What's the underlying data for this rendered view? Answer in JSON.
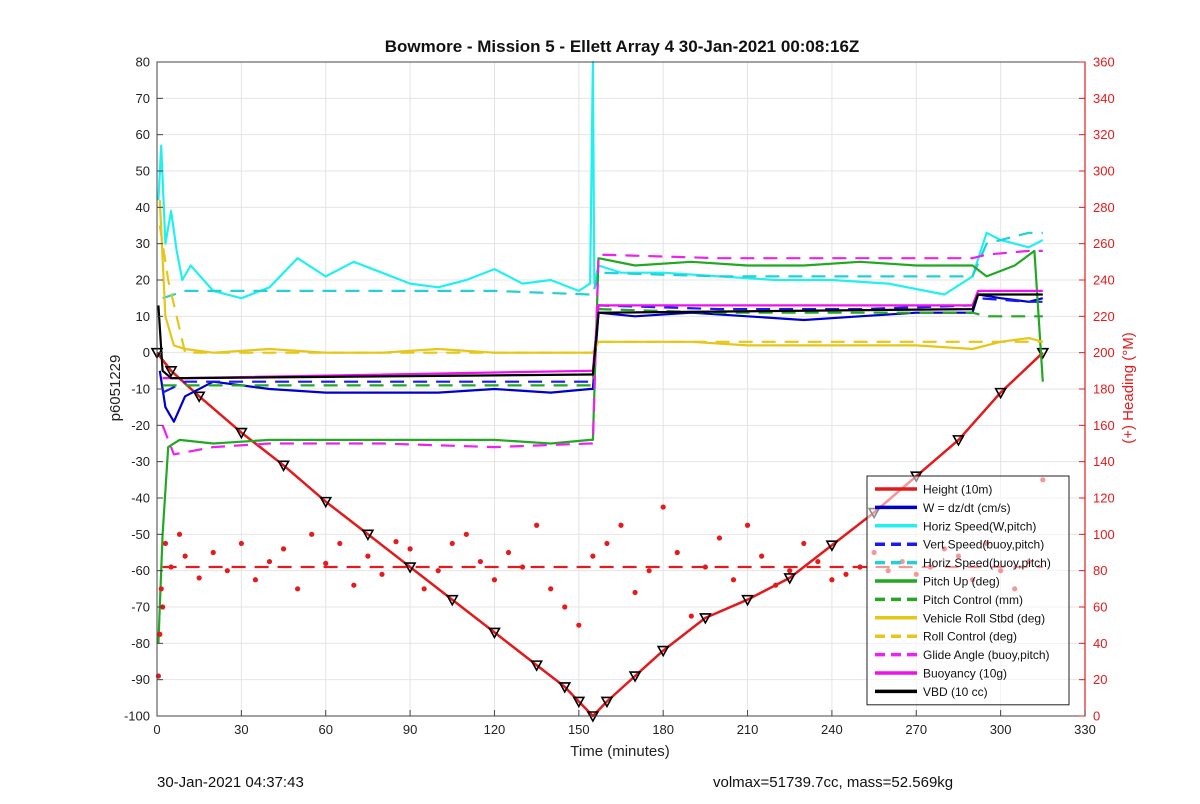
{
  "chart_data": {
    "type": "line",
    "title": "Bowmore - Mission 5 - Ellett Array 4 30-Jan-2021 00:08:16Z",
    "xlabel": "Time (minutes)",
    "ylabel": "p6051229",
    "y2label": "(+) Heading (°M)",
    "xlim": [
      0,
      330
    ],
    "ylim": [
      -100,
      80
    ],
    "y2lim": [
      0,
      360
    ],
    "xticks": [
      0,
      30,
      60,
      90,
      120,
      150,
      180,
      210,
      240,
      270,
      300,
      330
    ],
    "yticks": [
      80,
      70,
      60,
      50,
      40,
      30,
      20,
      10,
      0,
      -10,
      -20,
      -30,
      -40,
      -50,
      -60,
      -70,
      -80,
      -90,
      -100
    ],
    "y2ticks": [
      360,
      340,
      320,
      300,
      280,
      260,
      240,
      220,
      200,
      180,
      160,
      140,
      120,
      100,
      80,
      60,
      40,
      20,
      0
    ],
    "grid": true,
    "legend_position": "bottom-right",
    "colors": {
      "y2_axis": "#e41a1c",
      "heading_points": "#e41a1c"
    },
    "series": [
      {
        "name": "Height (10m)",
        "color": "#e31a1c",
        "style": "solid",
        "marker": "black-triangle",
        "x": [
          0,
          5,
          15,
          30,
          45,
          60,
          75,
          90,
          105,
          120,
          135,
          145,
          150,
          155,
          160,
          170,
          180,
          195,
          210,
          225,
          240,
          255,
          270,
          285,
          300,
          315
        ],
        "y": [
          0,
          -5,
          -12,
          -22,
          -31,
          -41,
          -50,
          -59,
          -68,
          -77,
          -86,
          -92,
          -96,
          -100,
          -96,
          -89,
          -82,
          -73,
          -68,
          -62,
          -53,
          -44,
          -34,
          -24,
          -11,
          0
        ]
      },
      {
        "name": "W = dz/dt (cm/s)",
        "color": "#0000cc",
        "style": "solid",
        "x": [
          1,
          3,
          6,
          10,
          20,
          40,
          60,
          80,
          100,
          120,
          140,
          154,
          155,
          157,
          170,
          190,
          210,
          230,
          250,
          270,
          285,
          290,
          292,
          300,
          310,
          315
        ],
        "y": [
          -5,
          -15,
          -19,
          -12,
          -8,
          -10,
          -11,
          -11,
          -11,
          -10,
          -11,
          -10,
          -10,
          11,
          10,
          11,
          10,
          9,
          10,
          11,
          11,
          11,
          16,
          15,
          14,
          15
        ]
      },
      {
        "name": "Horiz Speed(W,pitch)",
        "color": "#22f0f0",
        "style": "solid",
        "x": [
          0.5,
          1.5,
          3,
          5,
          7,
          9,
          12,
          20,
          30,
          40,
          50,
          60,
          70,
          80,
          90,
          100,
          110,
          120,
          130,
          140,
          150,
          154,
          155,
          155.5,
          157,
          165,
          180,
          200,
          220,
          240,
          260,
          280,
          290,
          295,
          300,
          310,
          315
        ],
        "y": [
          42,
          57,
          30,
          39,
          28,
          20,
          24,
          17,
          15,
          18,
          26,
          21,
          25,
          22,
          19,
          18,
          20,
          23,
          19,
          20,
          17,
          19,
          80,
          19,
          24,
          22,
          22,
          21,
          20,
          20,
          19,
          16,
          21,
          33,
          31,
          29,
          31
        ]
      },
      {
        "name": "Vert Speed(buoy,pitch)",
        "color": "#1a1aee",
        "style": "dashed",
        "x": [
          2,
          10,
          40,
          80,
          120,
          154,
          155,
          157,
          200,
          250,
          290,
          292,
          310,
          315
        ],
        "y": [
          -11,
          -8,
          -8,
          -8,
          -8,
          -8,
          -8,
          13,
          12,
          12,
          13,
          15,
          14,
          14
        ]
      },
      {
        "name": "Horiz Speed(buoy,pitch)",
        "color": "#22d0d8",
        "style": "dashed",
        "x": [
          2,
          10,
          40,
          80,
          120,
          154,
          155,
          157,
          200,
          250,
          290,
          295,
          310,
          315
        ],
        "y": [
          15,
          17,
          17,
          17,
          17,
          16,
          16,
          22,
          21,
          21,
          21,
          30,
          33,
          33
        ]
      },
      {
        "name": "Pitch Up (deg)",
        "color": "#22a822",
        "style": "solid",
        "x": [
          0.5,
          2,
          4,
          8,
          20,
          40,
          60,
          80,
          100,
          120,
          140,
          154,
          155,
          157,
          170,
          190,
          210,
          230,
          250,
          270,
          290,
          295,
          305,
          312,
          315
        ],
        "y": [
          -80,
          -50,
          -26,
          -24,
          -25,
          -24,
          -24,
          -24,
          -24,
          -24,
          -25,
          -24,
          -24,
          26,
          24,
          25,
          24,
          24,
          25,
          24,
          24,
          21,
          24,
          28,
          -8
        ]
      },
      {
        "name": "Pitch Control (mm)",
        "color": "#22a822",
        "style": "dashed",
        "x": [
          2,
          10,
          40,
          80,
          120,
          154,
          155,
          157,
          200,
          250,
          290,
          295,
          310,
          315
        ],
        "y": [
          -9,
          -9,
          -9,
          -9,
          -9,
          -9,
          -9,
          12,
          11,
          11,
          11,
          10,
          10,
          10
        ]
      },
      {
        "name": "Vehicle Roll Stbd (deg)",
        "color": "#e6c619",
        "style": "solid",
        "x": [
          1,
          3,
          6,
          10,
          20,
          40,
          60,
          80,
          100,
          120,
          140,
          154,
          155,
          157,
          170,
          190,
          210,
          230,
          250,
          270,
          290,
          300,
          310,
          315
        ],
        "y": [
          42,
          10,
          2,
          1,
          0,
          1,
          0,
          0,
          1,
          0,
          0,
          0,
          0,
          3,
          3,
          3,
          2,
          2,
          2,
          2,
          1,
          3,
          4,
          3
        ]
      },
      {
        "name": "Roll Control (deg)",
        "color": "#e6c619",
        "style": "dashed",
        "x": [
          1,
          4,
          10,
          40,
          80,
          120,
          154,
          155,
          157,
          200,
          250,
          290,
          310,
          315
        ],
        "y": [
          35,
          20,
          0,
          0,
          0,
          0,
          0,
          0,
          3,
          3,
          3,
          3,
          3,
          3
        ]
      },
      {
        "name": "Glide Angle (buoy,pitch)",
        "color": "#ee22ee",
        "style": "dashed",
        "x": [
          2,
          6,
          20,
          40,
          80,
          120,
          154,
          155,
          157,
          200,
          250,
          290,
          295,
          310,
          315
        ],
        "y": [
          -20,
          -28,
          -26,
          -25,
          -25,
          -26,
          -25,
          -25,
          27,
          26,
          26,
          26,
          27,
          28,
          28
        ]
      },
      {
        "name": "Buoyancy (10g)",
        "color": "#ee11ee",
        "style": "solid",
        "x": [
          2,
          10,
          154,
          155,
          157,
          290,
          292,
          315
        ],
        "y": [
          -7,
          -7,
          -5,
          -5,
          13,
          13,
          17,
          17
        ]
      },
      {
        "name": "VBD (10 cc)",
        "color": "#000000",
        "style": "solid",
        "x": [
          0.5,
          2,
          5,
          10,
          154,
          155,
          157,
          290,
          292,
          315
        ],
        "y": [
          13,
          -5,
          -7,
          -7,
          -6,
          -6,
          11,
          12,
          16,
          16
        ]
      },
      {
        "name": "",
        "color": "#e41a1c",
        "style": "points",
        "axis": "right",
        "x": [
          0.5,
          1,
          1.5,
          2,
          3,
          5,
          8,
          10,
          15,
          20,
          25,
          30,
          35,
          40,
          45,
          50,
          55,
          60,
          65,
          70,
          75,
          80,
          85,
          90,
          95,
          100,
          105,
          110,
          115,
          120,
          125,
          130,
          135,
          140,
          145,
          150,
          155,
          160,
          165,
          170,
          175,
          180,
          185,
          190,
          195,
          200,
          205,
          210,
          215,
          220,
          225,
          230,
          235,
          240,
          245,
          250,
          255,
          260,
          265,
          270,
          275,
          280,
          285,
          290,
          295,
          300,
          305,
          310,
          315
        ],
        "y": [
          22,
          45,
          70,
          60,
          95,
          82,
          100,
          88,
          76,
          90,
          80,
          95,
          75,
          85,
          92,
          70,
          100,
          84,
          95,
          72,
          88,
          78,
          96,
          92,
          70,
          80,
          95,
          100,
          85,
          75,
          90,
          82,
          105,
          70,
          60,
          50,
          88,
          95,
          105,
          68,
          80,
          115,
          90,
          55,
          82,
          98,
          75,
          105,
          88,
          72,
          80,
          95,
          85,
          75,
          78,
          82,
          90,
          80,
          85,
          78,
          82,
          92,
          88,
          75,
          95,
          80,
          70,
          85,
          130
        ]
      },
      {
        "name": "",
        "color": "#e41a1c",
        "style": "dashed",
        "axis": "right",
        "x": [
          2,
          315
        ],
        "y": [
          82,
          82
        ]
      }
    ]
  },
  "footer": {
    "left": "30-Jan-2021 04:37:43",
    "right": "volmax=51739.7cc, mass=52.569kg"
  }
}
